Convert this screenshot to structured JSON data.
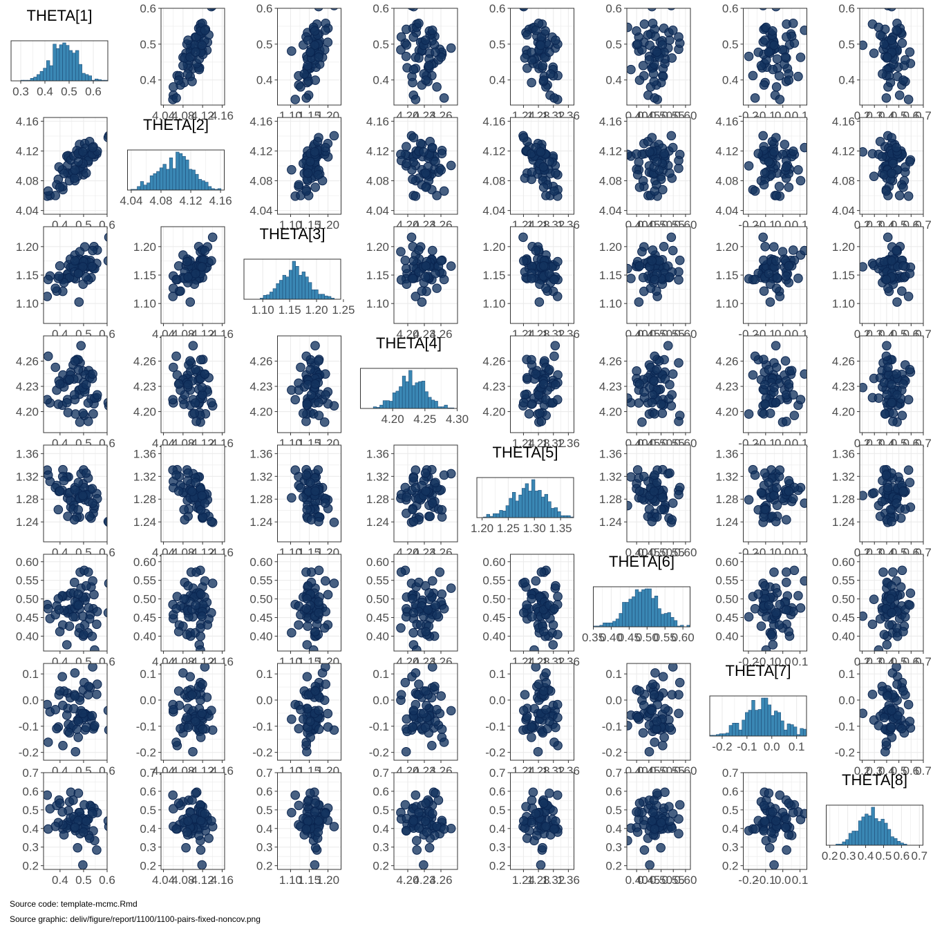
{
  "chart_data": {
    "type": "scatter",
    "subtype": "pairs-matrix",
    "n_params": 8,
    "params": [
      {
        "name": "THETA[1]",
        "lim": [
          0.33,
          0.6
        ],
        "hist_lim": [
          0.26,
          0.66
        ],
        "ticks": [
          {
            "v": 0.4,
            "l": "0.4"
          },
          {
            "v": 0.5,
            "l": "0.5"
          },
          {
            "v": 0.6,
            "l": "0.6"
          }
        ],
        "hist_ticks": [
          {
            "v": 0.3,
            "l": "0.3"
          },
          {
            "v": 0.4,
            "l": "0.4"
          },
          {
            "v": 0.5,
            "l": "0.5"
          },
          {
            "v": 0.6,
            "l": "0.6"
          }
        ],
        "mean": 0.48,
        "sd": 0.055
      },
      {
        "name": "THETA[2]",
        "lim": [
          4.035,
          4.165
        ],
        "hist_lim": [
          4.035,
          4.165
        ],
        "ticks": [
          {
            "v": 4.04,
            "l": "4.04"
          },
          {
            "v": 4.08,
            "l": "4.08"
          },
          {
            "v": 4.12,
            "l": "4.12"
          },
          {
            "v": 4.16,
            "l": "4.16"
          }
        ],
        "hist_ticks": [
          {
            "v": 4.04,
            "l": "4.04"
          },
          {
            "v": 4.08,
            "l": "4.08"
          },
          {
            "v": 4.12,
            "l": "4.12"
          },
          {
            "v": 4.16,
            "l": "4.16"
          }
        ],
        "mean": 4.1,
        "sd": 0.022
      },
      {
        "name": "THETA[3]",
        "lim": [
          1.065,
          1.235
        ],
        "hist_lim": [
          1.065,
          1.245
        ],
        "ticks": [
          {
            "v": 1.1,
            "l": "1.10"
          },
          {
            "v": 1.15,
            "l": "1.15"
          },
          {
            "v": 1.2,
            "l": "1.20"
          }
        ],
        "hist_ticks": [
          {
            "v": 1.1,
            "l": "1.10"
          },
          {
            "v": 1.15,
            "l": "1.15"
          },
          {
            "v": 1.2,
            "l": "1.20"
          },
          {
            "v": 1.25,
            "l": "1.25"
          }
        ],
        "mean": 1.16,
        "sd": 0.025
      },
      {
        "name": "THETA[4]",
        "lim": [
          4.175,
          4.29
        ],
        "hist_lim": [
          4.15,
          4.3
        ],
        "ticks": [
          {
            "v": 4.2,
            "l": "4.20"
          },
          {
            "v": 4.23,
            "l": "4.23"
          },
          {
            "v": 4.26,
            "l": "4.26"
          }
        ],
        "hist_ticks": [
          {
            "v": 4.2,
            "l": "4.20"
          },
          {
            "v": 4.25,
            "l": "4.25"
          },
          {
            "v": 4.3,
            "l": "4.30"
          }
        ],
        "mean": 4.23,
        "sd": 0.022
      },
      {
        "name": "THETA[5]",
        "lim": [
          1.205,
          1.375
        ],
        "hist_lim": [
          1.19,
          1.375
        ],
        "ticks": [
          {
            "v": 1.24,
            "l": "1.24"
          },
          {
            "v": 1.28,
            "l": "1.28"
          },
          {
            "v": 1.32,
            "l": "1.32"
          },
          {
            "v": 1.36,
            "l": "1.36"
          }
        ],
        "hist_ticks": [
          {
            "v": 1.2,
            "l": "1.20"
          },
          {
            "v": 1.25,
            "l": "1.25"
          },
          {
            "v": 1.3,
            "l": "1.30"
          },
          {
            "v": 1.35,
            "l": "1.35"
          }
        ],
        "mean": 1.29,
        "sd": 0.03
      },
      {
        "name": "THETA[6]",
        "lim": [
          0.36,
          0.62
        ],
        "hist_lim": [
          0.35,
          0.62
        ],
        "ticks": [
          {
            "v": 0.4,
            "l": "0.40"
          },
          {
            "v": 0.45,
            "l": "0.45"
          },
          {
            "v": 0.5,
            "l": "0.50"
          },
          {
            "v": 0.55,
            "l": "0.55"
          },
          {
            "v": 0.6,
            "l": "0.60"
          }
        ],
        "hist_ticks": [
          {
            "v": 0.35,
            "l": "0.35"
          },
          {
            "v": 0.4,
            "l": "0.40"
          },
          {
            "v": 0.45,
            "l": "0.45"
          },
          {
            "v": 0.5,
            "l": "0.50"
          },
          {
            "v": 0.55,
            "l": "0.55"
          },
          {
            "v": 0.6,
            "l": "0.60"
          }
        ],
        "mean": 0.49,
        "sd": 0.045
      },
      {
        "name": "THETA[7]",
        "lim": [
          -0.23,
          0.14
        ],
        "hist_lim": [
          -0.25,
          0.14
        ],
        "ticks": [
          {
            "v": -0.2,
            "l": "-0.2"
          },
          {
            "v": -0.1,
            "l": "-0.1"
          },
          {
            "v": 0.0,
            "l": "0.0"
          },
          {
            "v": 0.1,
            "l": "0.1"
          }
        ],
        "hist_ticks": [
          {
            "v": -0.2,
            "l": "-0.2"
          },
          {
            "v": -0.1,
            "l": "-0.1"
          },
          {
            "v": 0.0,
            "l": "0.0"
          },
          {
            "v": 0.1,
            "l": "0.1"
          }
        ],
        "mean": -0.04,
        "sd": 0.07
      },
      {
        "name": "THETA[8]",
        "lim": [
          0.18,
          0.7
        ],
        "hist_lim": [
          0.18,
          0.72
        ],
        "ticks": [
          {
            "v": 0.2,
            "l": "0.2"
          },
          {
            "v": 0.3,
            "l": "0.3"
          },
          {
            "v": 0.4,
            "l": "0.4"
          },
          {
            "v": 0.5,
            "l": "0.5"
          },
          {
            "v": 0.6,
            "l": "0.6"
          },
          {
            "v": 0.7,
            "l": "0.7"
          }
        ],
        "hist_ticks": [
          {
            "v": 0.2,
            "l": "0.2"
          },
          {
            "v": 0.3,
            "l": "0.3"
          },
          {
            "v": 0.4,
            "l": "0.4"
          },
          {
            "v": 0.5,
            "l": "0.5"
          },
          {
            "v": 0.6,
            "l": "0.6"
          },
          {
            "v": 0.7,
            "l": "0.7"
          }
        ],
        "mean": 0.43,
        "sd": 0.07
      }
    ],
    "correlations": [
      {
        "a": 0,
        "b": 1,
        "r": 0.75
      },
      {
        "a": 0,
        "b": 2,
        "r": 0.55
      },
      {
        "a": 1,
        "b": 2,
        "r": 0.55
      },
      {
        "a": 0,
        "b": 3,
        "r": -0.25
      },
      {
        "a": 1,
        "b": 3,
        "r": -0.25
      },
      {
        "a": 0,
        "b": 4,
        "r": -0.3
      },
      {
        "a": 1,
        "b": 4,
        "r": -0.4
      },
      {
        "a": 2,
        "b": 3,
        "r": -0.2
      }
    ],
    "n_draws": 60,
    "hist_bins": 30,
    "point_color": "#13335f",
    "point_edge": "#0a2550",
    "bar_fill": "#3a87b4",
    "bar_edge": "#1f4e79",
    "grid_color": "#ebebeb",
    "panel_border": "#333333"
  },
  "footer": {
    "line1": "Source code: template-mcmc.Rmd",
    "line2": "Source graphic: deliv/figure/report/1100/1100-pairs-fixed-noncov.png"
  }
}
